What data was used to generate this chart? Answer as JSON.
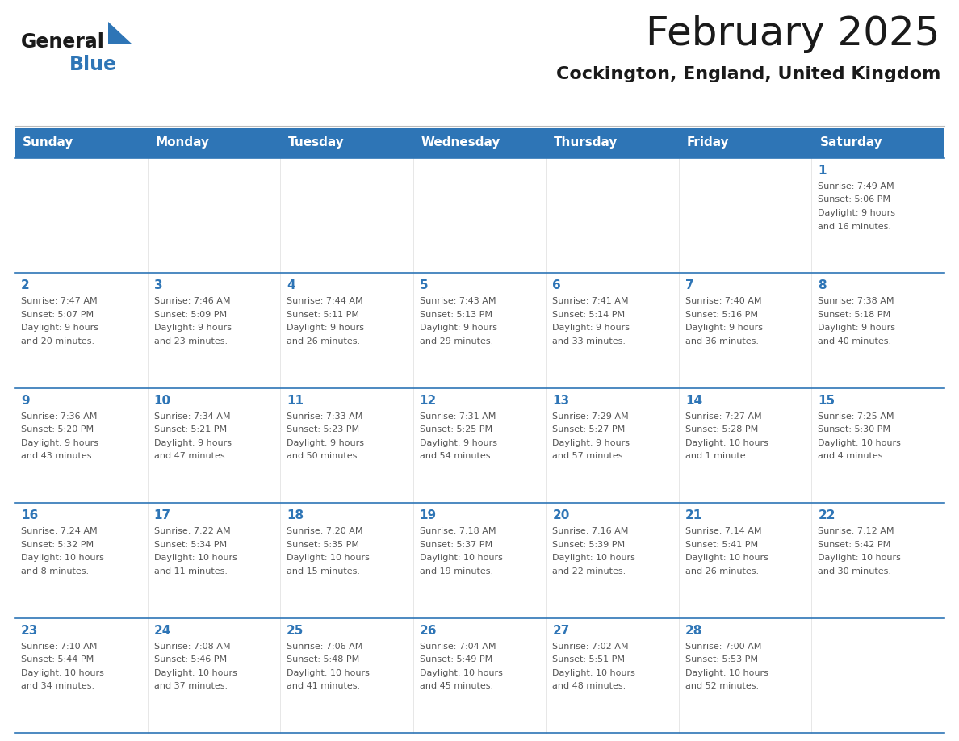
{
  "title": "February 2025",
  "subtitle": "Cockington, England, United Kingdom",
  "days_of_week": [
    "Sunday",
    "Monday",
    "Tuesday",
    "Wednesday",
    "Thursday",
    "Friday",
    "Saturday"
  ],
  "header_bg": "#2E75B6",
  "header_text": "#FFFFFF",
  "cell_bg": "#FFFFFF",
  "cell_border_color": "#2E75B6",
  "row_border_color": "#2E75B6",
  "day_num_color": "#2E75B6",
  "info_text_color": "#555555",
  "title_color": "#1a1a1a",
  "subtitle_color": "#1a1a1a",
  "logo_general_color": "#1a1a1a",
  "logo_blue_color": "#2E75B6",
  "fig_width": 11.88,
  "fig_height": 9.18,
  "dpi": 100,
  "calendar_data": [
    [
      null,
      null,
      null,
      null,
      null,
      null,
      {
        "day": 1,
        "sunrise": "7:49 AM",
        "sunset": "5:06 PM",
        "daylight": "9 hours and 16 minutes."
      }
    ],
    [
      {
        "day": 2,
        "sunrise": "7:47 AM",
        "sunset": "5:07 PM",
        "daylight": "9 hours and 20 minutes."
      },
      {
        "day": 3,
        "sunrise": "7:46 AM",
        "sunset": "5:09 PM",
        "daylight": "9 hours and 23 minutes."
      },
      {
        "day": 4,
        "sunrise": "7:44 AM",
        "sunset": "5:11 PM",
        "daylight": "9 hours and 26 minutes."
      },
      {
        "day": 5,
        "sunrise": "7:43 AM",
        "sunset": "5:13 PM",
        "daylight": "9 hours and 29 minutes."
      },
      {
        "day": 6,
        "sunrise": "7:41 AM",
        "sunset": "5:14 PM",
        "daylight": "9 hours and 33 minutes."
      },
      {
        "day": 7,
        "sunrise": "7:40 AM",
        "sunset": "5:16 PM",
        "daylight": "9 hours and 36 minutes."
      },
      {
        "day": 8,
        "sunrise": "7:38 AM",
        "sunset": "5:18 PM",
        "daylight": "9 hours and 40 minutes."
      }
    ],
    [
      {
        "day": 9,
        "sunrise": "7:36 AM",
        "sunset": "5:20 PM",
        "daylight": "9 hours and 43 minutes."
      },
      {
        "day": 10,
        "sunrise": "7:34 AM",
        "sunset": "5:21 PM",
        "daylight": "9 hours and 47 minutes."
      },
      {
        "day": 11,
        "sunrise": "7:33 AM",
        "sunset": "5:23 PM",
        "daylight": "9 hours and 50 minutes."
      },
      {
        "day": 12,
        "sunrise": "7:31 AM",
        "sunset": "5:25 PM",
        "daylight": "9 hours and 54 minutes."
      },
      {
        "day": 13,
        "sunrise": "7:29 AM",
        "sunset": "5:27 PM",
        "daylight": "9 hours and 57 minutes."
      },
      {
        "day": 14,
        "sunrise": "7:27 AM",
        "sunset": "5:28 PM",
        "daylight": "10 hours and 1 minute."
      },
      {
        "day": 15,
        "sunrise": "7:25 AM",
        "sunset": "5:30 PM",
        "daylight": "10 hours and 4 minutes."
      }
    ],
    [
      {
        "day": 16,
        "sunrise": "7:24 AM",
        "sunset": "5:32 PM",
        "daylight": "10 hours and 8 minutes."
      },
      {
        "day": 17,
        "sunrise": "7:22 AM",
        "sunset": "5:34 PM",
        "daylight": "10 hours and 11 minutes."
      },
      {
        "day": 18,
        "sunrise": "7:20 AM",
        "sunset": "5:35 PM",
        "daylight": "10 hours and 15 minutes."
      },
      {
        "day": 19,
        "sunrise": "7:18 AM",
        "sunset": "5:37 PM",
        "daylight": "10 hours and 19 minutes."
      },
      {
        "day": 20,
        "sunrise": "7:16 AM",
        "sunset": "5:39 PM",
        "daylight": "10 hours and 22 minutes."
      },
      {
        "day": 21,
        "sunrise": "7:14 AM",
        "sunset": "5:41 PM",
        "daylight": "10 hours and 26 minutes."
      },
      {
        "day": 22,
        "sunrise": "7:12 AM",
        "sunset": "5:42 PM",
        "daylight": "10 hours and 30 minutes."
      }
    ],
    [
      {
        "day": 23,
        "sunrise": "7:10 AM",
        "sunset": "5:44 PM",
        "daylight": "10 hours and 34 minutes."
      },
      {
        "day": 24,
        "sunrise": "7:08 AM",
        "sunset": "5:46 PM",
        "daylight": "10 hours and 37 minutes."
      },
      {
        "day": 25,
        "sunrise": "7:06 AM",
        "sunset": "5:48 PM",
        "daylight": "10 hours and 41 minutes."
      },
      {
        "day": 26,
        "sunrise": "7:04 AM",
        "sunset": "5:49 PM",
        "daylight": "10 hours and 45 minutes."
      },
      {
        "day": 27,
        "sunrise": "7:02 AM",
        "sunset": "5:51 PM",
        "daylight": "10 hours and 48 minutes."
      },
      {
        "day": 28,
        "sunrise": "7:00 AM",
        "sunset": "5:53 PM",
        "daylight": "10 hours and 52 minutes."
      },
      null
    ]
  ]
}
